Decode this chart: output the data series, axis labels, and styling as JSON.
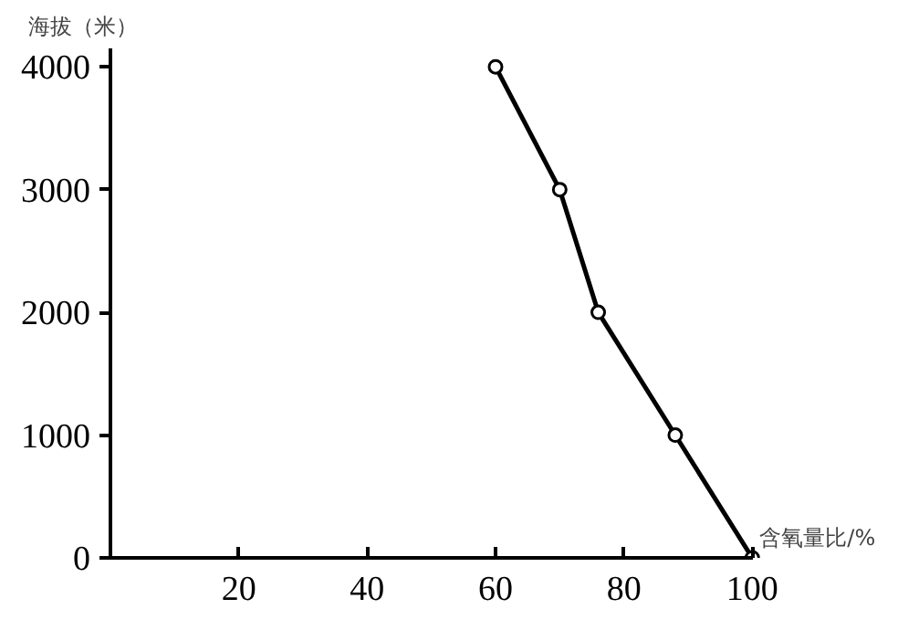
{
  "chart_data": {
    "type": "line",
    "xlabel": "含氧量比/%",
    "ylabel": "海拔（米）",
    "x": [
      60,
      70,
      76,
      88,
      100
    ],
    "series": [
      {
        "color": "#000000",
        "values": [
          4000,
          3000,
          2000,
          1000,
          0
        ]
      }
    ],
    "xlim": [
      0,
      100
    ],
    "ylim": [
      0,
      4150
    ],
    "xticks": [
      20,
      40,
      60,
      80,
      100
    ],
    "yticks": [
      0,
      1000,
      2000,
      3000,
      4000
    ],
    "grid": false,
    "marker": "circle",
    "line_style": "solid"
  }
}
